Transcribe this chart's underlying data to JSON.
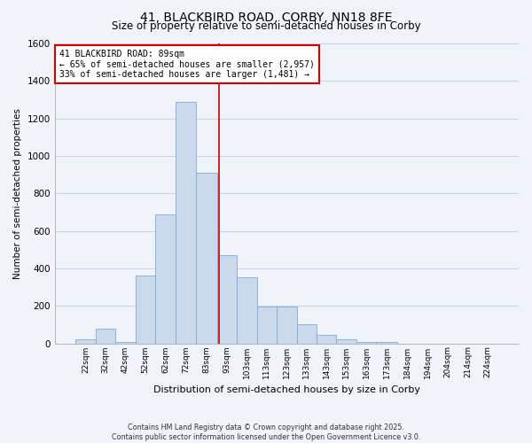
{
  "title": "41, BLACKBIRD ROAD, CORBY, NN18 8FE",
  "subtitle": "Size of property relative to semi-detached houses in Corby",
  "xlabel": "Distribution of semi-detached houses by size in Corby",
  "ylabel": "Number of semi-detached properties",
  "bar_labels": [
    "22sqm",
    "32sqm",
    "42sqm",
    "52sqm",
    "62sqm",
    "72sqm",
    "83sqm",
    "93sqm",
    "103sqm",
    "113sqm",
    "123sqm",
    "133sqm",
    "143sqm",
    "153sqm",
    "163sqm",
    "173sqm",
    "184sqm",
    "194sqm",
    "204sqm",
    "214sqm",
    "224sqm"
  ],
  "bar_values": [
    20,
    80,
    5,
    360,
    690,
    1290,
    910,
    470,
    350,
    195,
    195,
    100,
    45,
    20,
    5,
    5,
    0,
    0,
    0,
    0,
    0
  ],
  "bar_color": "#ccd9ed",
  "bar_edge_color": "#7aacdb",
  "annotation_title": "41 BLACKBIRD ROAD: 89sqm",
  "annotation_line1": "← 65% of semi-detached houses are smaller (2,957)",
  "annotation_line2": "33% of semi-detached houses are larger (1,481) →",
  "vline_x": 89,
  "vline_color": "#cc0000",
  "ylim": [
    0,
    1600
  ],
  "yticks": [
    0,
    200,
    400,
    600,
    800,
    1000,
    1200,
    1400,
    1600
  ],
  "footer_line1": "Contains HM Land Registry data © Crown copyright and database right 2025.",
  "footer_line2": "Contains public sector information licensed under the Open Government Licence v3.0.",
  "bg_color": "#f0f4fa",
  "grid_color": "#c8d4e8"
}
